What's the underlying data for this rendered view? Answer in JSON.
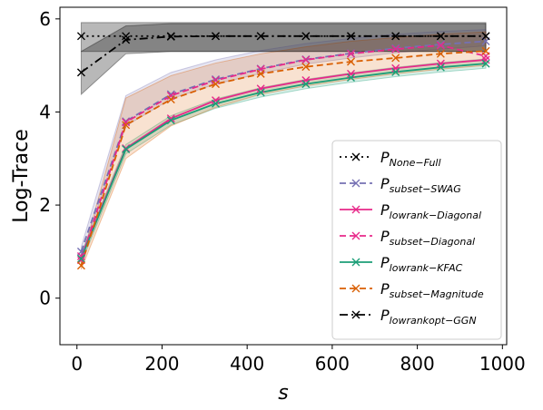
{
  "chart_data": {
    "type": "line",
    "xlabel": "s",
    "ylabel": "Log-Trace",
    "xlim": [
      -40,
      1010
    ],
    "ylim": [
      -1.0,
      6.25
    ],
    "xticks": [
      0,
      200,
      400,
      600,
      800,
      1000
    ],
    "yticks": [
      0,
      2,
      4,
      6
    ],
    "grid": false,
    "legend_position": "lower-right",
    "x": [
      10,
      115,
      221,
      326,
      432,
      538,
      644,
      749,
      855,
      961
    ],
    "series": [
      {
        "name_main": "P",
        "name_sub": "None−Full",
        "color": "#000000",
        "dash": "2,4",
        "values": [
          5.63,
          5.63,
          5.63,
          5.63,
          5.63,
          5.63,
          5.63,
          5.63,
          5.63,
          5.63
        ],
        "band": [
          5.3,
          5.92
        ]
      },
      {
        "name_main": "P",
        "name_sub": "subset−SWAG",
        "color": "#7570b3",
        "dash": "7,4",
        "values": [
          1.0,
          3.8,
          4.38,
          4.7,
          4.93,
          5.13,
          5.26,
          5.37,
          5.45,
          5.52
        ],
        "band_low": [
          0.9,
          3.7,
          4.28,
          4.6,
          4.83,
          5.03,
          5.16,
          5.27,
          5.35,
          5.42
        ],
        "band_high": [
          1.1,
          4.35,
          4.85,
          5.12,
          5.32,
          5.47,
          5.58,
          5.67,
          5.73,
          5.77
        ]
      },
      {
        "name_main": "P",
        "name_sub": "lowrank−Diagonal",
        "color": "#e7298a",
        "dash": "",
        "values": [
          0.9,
          3.22,
          3.86,
          4.25,
          4.5,
          4.68,
          4.82,
          4.94,
          5.04,
          5.12
        ]
      },
      {
        "name_main": "P",
        "name_sub": "subset−Diagonal",
        "color": "#e7298a",
        "dash": "7,4",
        "values": [
          0.82,
          3.78,
          4.35,
          4.68,
          4.92,
          5.12,
          5.25,
          5.35,
          5.43,
          5.2
        ]
      },
      {
        "name_main": "P",
        "name_sub": "lowrank−KFAC",
        "color": "#1b9e77",
        "dash": "",
        "values": [
          0.85,
          3.2,
          3.82,
          4.18,
          4.42,
          4.6,
          4.74,
          4.86,
          4.96,
          5.04
        ],
        "band_low": [
          0.75,
          3.1,
          3.72,
          4.08,
          4.32,
          4.5,
          4.64,
          4.76,
          4.86,
          4.94
        ],
        "band_high": [
          0.95,
          3.3,
          3.92,
          4.28,
          4.52,
          4.7,
          4.84,
          4.96,
          5.06,
          5.14
        ]
      },
      {
        "name_main": "P",
        "name_sub": "subset−Magnitude",
        "color": "#d95f02",
        "dash": "7,4",
        "values": [
          0.7,
          3.72,
          4.27,
          4.6,
          4.82,
          4.97,
          5.08,
          5.16,
          5.25,
          5.31
        ],
        "band_low": [
          0.62,
          3.0,
          3.7,
          4.1,
          4.38,
          4.56,
          4.7,
          4.82,
          4.92,
          5.0
        ],
        "band_high": [
          0.8,
          4.3,
          4.78,
          5.05,
          5.25,
          5.4,
          5.52,
          5.6,
          5.67,
          5.72
        ]
      },
      {
        "name_main": "P",
        "name_sub": "lowrankopt−GGN",
        "color": "#000000",
        "dash": "9,4,2,4",
        "values": [
          4.85,
          5.55,
          5.62,
          5.63,
          5.63,
          5.63,
          5.63,
          5.63,
          5.63,
          5.63
        ],
        "band_low": [
          4.38,
          5.25,
          5.3,
          5.3,
          5.3,
          5.3,
          5.3,
          5.3,
          5.3,
          5.3
        ],
        "band_high": [
          5.3,
          5.85,
          5.9,
          5.9,
          5.9,
          5.9,
          5.9,
          5.9,
          5.9,
          5.9
        ]
      }
    ]
  }
}
